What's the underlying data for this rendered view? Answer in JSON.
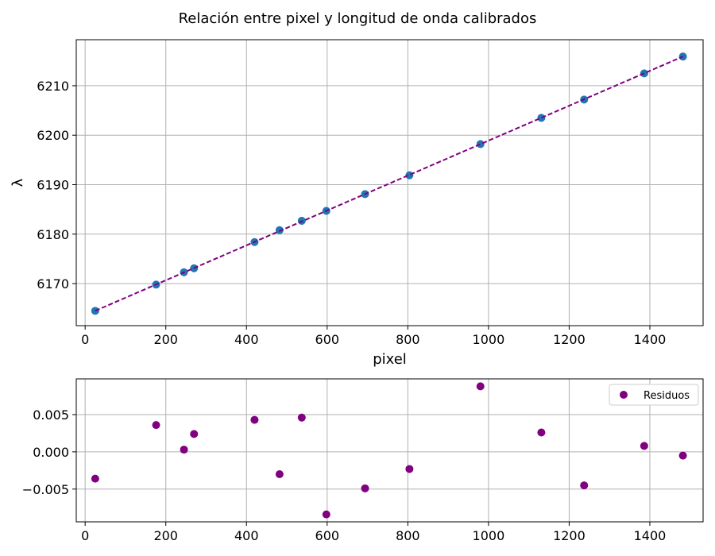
{
  "figure": {
    "title": "Relación entre pixel y longitud de onda calibrados"
  },
  "chart_data": [
    {
      "type": "scatter",
      "title": "",
      "xlabel": "pixel",
      "ylabel": "λ",
      "xlim": [
        -22,
        1532
      ],
      "ylim": [
        6161.5,
        6219.3
      ],
      "xticks": [
        0,
        200,
        400,
        600,
        800,
        1000,
        1200,
        1400
      ],
      "yticks": [
        6170,
        6180,
        6190,
        6200,
        6210
      ],
      "grid": true,
      "series": [
        {
          "kind": "scatter",
          "color": "#1f77b4",
          "x": [
            25,
            176,
            245,
            270,
            420,
            482,
            537,
            598,
            694,
            804,
            980,
            1131,
            1237,
            1386,
            1482
          ],
          "y": [
            6164.5,
            6169.8,
            6172.3,
            6173.1,
            6178.4,
            6180.8,
            6182.7,
            6184.7,
            6188.1,
            6191.9,
            6198.2,
            6203.5,
            6207.2,
            6212.5,
            6215.9
          ]
        },
        {
          "kind": "line",
          "style": "dashed",
          "color": "#800080",
          "x": [
            25,
            1482
          ],
          "y": [
            6164.5,
            6215.9
          ]
        }
      ]
    },
    {
      "type": "scatter",
      "title": "",
      "xlabel": "",
      "ylabel": "",
      "xlim": [
        -22,
        1532
      ],
      "ylim": [
        -0.0094,
        0.0098
      ],
      "xticks": [
        0,
        200,
        400,
        600,
        800,
        1000,
        1200,
        1400
      ],
      "yticks": [
        -0.005,
        0.0,
        0.005
      ],
      "ytick_labels": [
        "−0.005",
        "0.000",
        "0.005"
      ],
      "grid": true,
      "legend": "top-right",
      "series": [
        {
          "name": "Residuos",
          "kind": "scatter",
          "color": "#800080",
          "x": [
            25,
            176,
            245,
            270,
            420,
            482,
            537,
            598,
            694,
            804,
            980,
            1131,
            1237,
            1386,
            1482
          ],
          "y": [
            -0.0036,
            0.0036,
            0.0003,
            0.0024,
            0.0043,
            -0.003,
            0.0046,
            -0.0084,
            -0.0049,
            -0.0023,
            0.0088,
            0.0026,
            -0.0045,
            0.0008,
            -0.0005
          ]
        }
      ]
    }
  ]
}
